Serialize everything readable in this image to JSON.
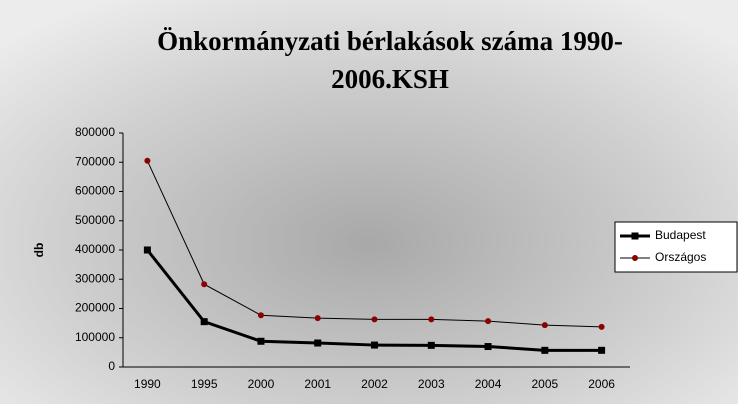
{
  "chart_data": {
    "type": "line",
    "title": [
      "Önkormányzati bérlakások száma 1990-",
      "2006.KSH"
    ],
    "ylabel": "db",
    "categories": [
      "1990",
      "1995",
      "2000",
      "2001",
      "2002",
      "2003",
      "2004",
      "2005",
      "2006"
    ],
    "series": [
      {
        "name": "Budapest",
        "color": "#000000",
        "values": [
          400000,
          155000,
          88000,
          82000,
          75000,
          74000,
          70000,
          57000,
          57000
        ]
      },
      {
        "name": "Országos",
        "color": "#8b0000",
        "values": [
          705000,
          283000,
          177000,
          167000,
          163000,
          163000,
          157000,
          143000,
          137000
        ]
      }
    ],
    "ylim": [
      0,
      800000
    ],
    "yticks": [
      0,
      100000,
      200000,
      300000,
      400000,
      500000,
      600000,
      700000,
      800000
    ],
    "legend": "right"
  }
}
